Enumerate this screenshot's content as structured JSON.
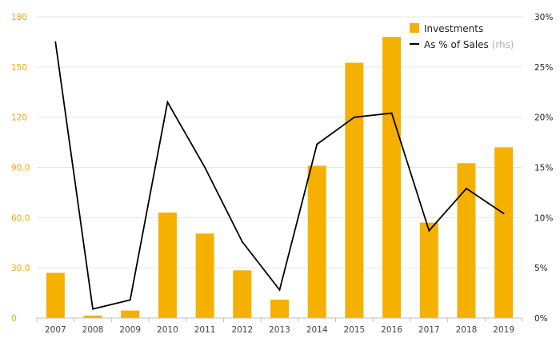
{
  "chart_data": {
    "type": "bar",
    "categories": [
      "2007",
      "2008",
      "2009",
      "2010",
      "2011",
      "2012",
      "2013",
      "2014",
      "2015",
      "2016",
      "2017",
      "2018",
      "2019"
    ],
    "series": [
      {
        "name": "Investments",
        "type": "bar",
        "axis": "left",
        "color": "#f5b000",
        "values": [
          27,
          1.5,
          4.5,
          63,
          50.5,
          28.5,
          11,
          91,
          152.5,
          168,
          57,
          92.5,
          102
        ]
      },
      {
        "name": "As % of Sales",
        "name_suffix": "(rhs)",
        "type": "line",
        "axis": "right",
        "color": "#000000",
        "values": [
          27.5,
          0.9,
          1.8,
          21.5,
          15.0,
          7.6,
          2.8,
          17.3,
          20.0,
          20.4,
          8.7,
          12.9,
          10.4
        ]
      }
    ],
    "y_left": {
      "ylim": [
        0,
        180
      ],
      "ticks": [
        0,
        30,
        60,
        90,
        120,
        150,
        180
      ],
      "tick_labels": [
        "0",
        "30.0",
        "60.0",
        "90.0",
        "120",
        "150",
        "180"
      ],
      "color": "#f0a800"
    },
    "y_right": {
      "ylim": [
        0,
        30
      ],
      "ticks": [
        0,
        5,
        10,
        15,
        20,
        25,
        30
      ],
      "tick_labels": [
        "0%",
        "5%",
        "10%",
        "15%",
        "20%",
        "25%",
        "30%"
      ],
      "color": "#222222"
    },
    "grid": true,
    "legend_position": "top-right"
  }
}
